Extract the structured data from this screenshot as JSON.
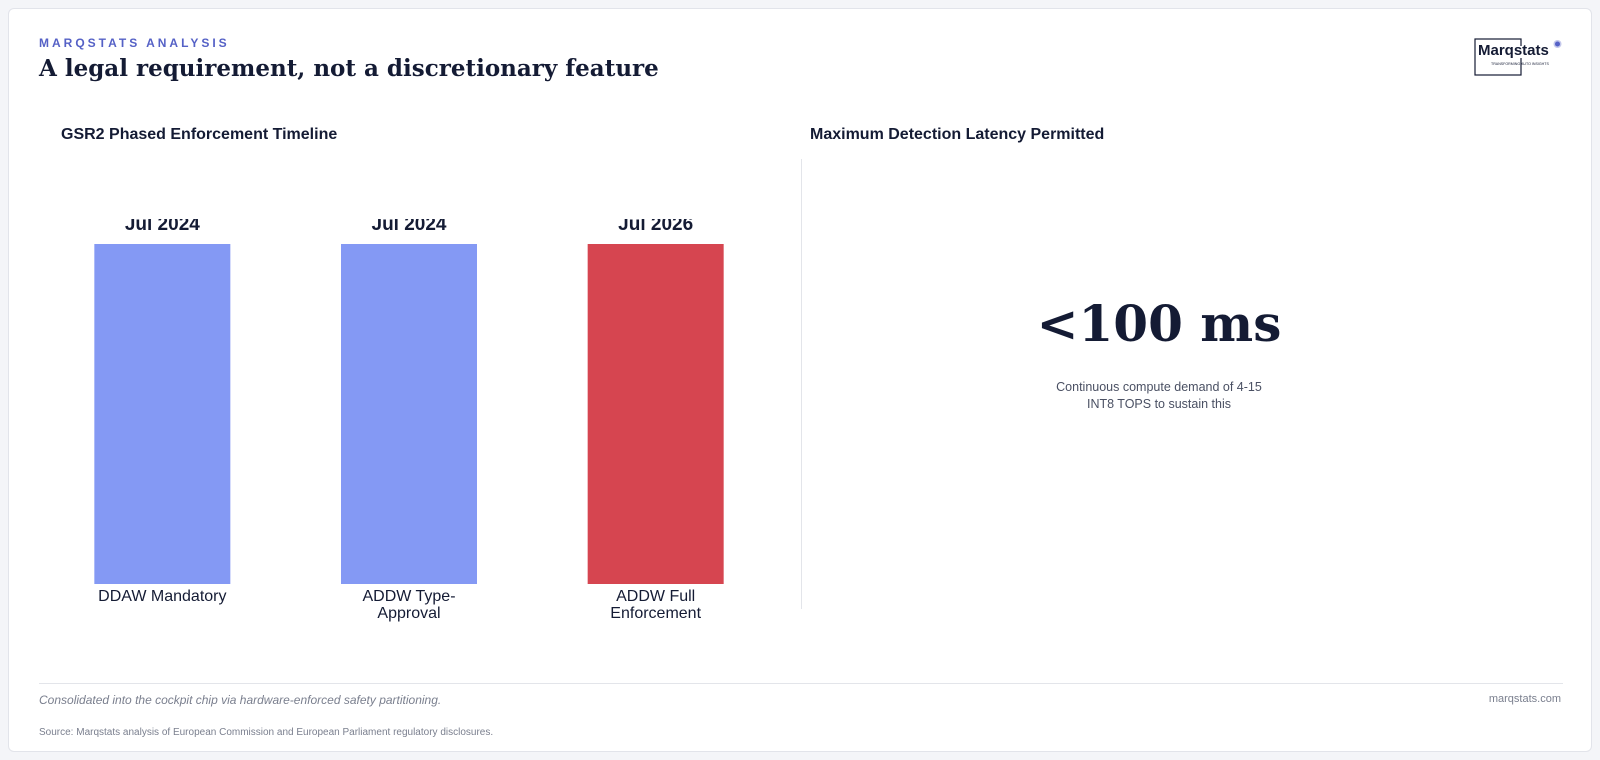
{
  "header": {
    "eyebrow": "MARQSTATS ANALYSIS",
    "title": "A legal requirement, not a discretionary feature"
  },
  "logo": {
    "text": "Marqstats",
    "tagline": "TRANSFORMING AUTO INSIGHTS"
  },
  "left_panel": {
    "title": "GSR2 Phased Enforcement Timeline"
  },
  "right_panel": {
    "title": "Maximum Detection Latency Permitted",
    "metric": "<100 ms",
    "caption_line1": "Continuous compute demand of 4-15",
    "caption_line2": "INT8 TOPS to sustain this"
  },
  "chart_data": {
    "type": "bar",
    "categories": [
      "DDAW Mandatory",
      "ADDW Type-Approval",
      "ADDW Full Enforcement"
    ],
    "category_lines": [
      [
        "DDAW Mandatory"
      ],
      [
        "ADDW Type-",
        "Approval"
      ],
      [
        "ADDW Full",
        "Enforcement"
      ]
    ],
    "data_labels": [
      "Jul 2024",
      "Jul 2024",
      "Jul 2026"
    ],
    "values": [
      1,
      1,
      1
    ],
    "colors": [
      "#8499f4",
      "#8499f4",
      "#d64550"
    ],
    "ylim": [
      0,
      1
    ]
  },
  "footer": {
    "note": "Consolidated into the cockpit chip via hardware-enforced safety partitioning.",
    "site": "marqstats.com",
    "source": "Source: Marqstats analysis of European Commission and European Parliament regulatory disclosures."
  },
  "colors": {
    "accent": "#5561c6",
    "navy": "#141b34",
    "bar_blue": "#8499f4",
    "bar_red": "#d64550"
  }
}
